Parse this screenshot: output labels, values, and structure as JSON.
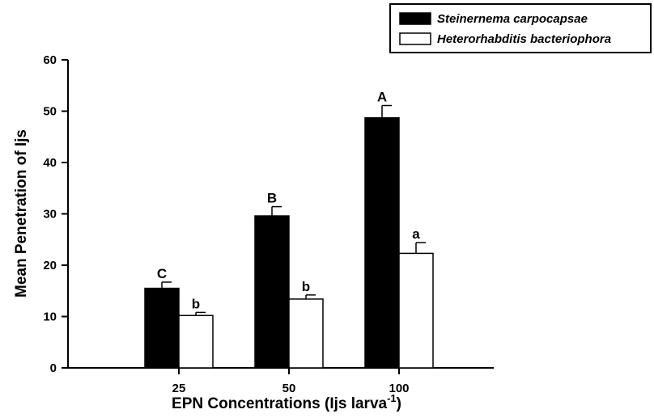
{
  "chart_data": {
    "type": "bar",
    "categories": [
      "25",
      "50",
      "100"
    ],
    "xlabel": "EPN Concentrations (Ijs larva",
    "xlabel_superscript": "-1",
    "xlabel_close": ")",
    "ylabel": "Mean Penetration of Ijs",
    "ylim": [
      0,
      60
    ],
    "yticks": [
      "0",
      "10",
      "20",
      "30",
      "40",
      "50",
      "60"
    ],
    "grid": false,
    "legend_position": "top-right",
    "series": [
      {
        "name": "Steinernema carpocapsae",
        "color": "#000000",
        "values": [
          15.5,
          29.6,
          48.7
        ],
        "errors": [
          1.2,
          1.8,
          2.4
        ],
        "labels": [
          "C",
          "B",
          "A"
        ]
      },
      {
        "name": "Heterorhabditis bacteriophora",
        "color": "#ffffff",
        "values": [
          10.2,
          13.4,
          22.3
        ],
        "errors": [
          0.6,
          0.8,
          2.1
        ],
        "labels": [
          "b",
          "b",
          "a"
        ]
      }
    ]
  }
}
